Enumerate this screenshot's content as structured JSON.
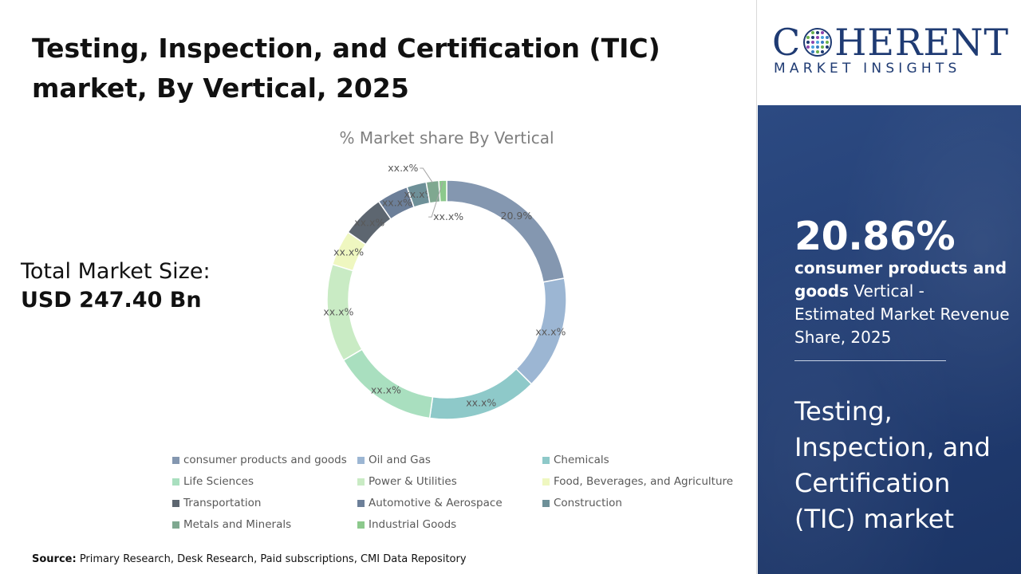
{
  "header": {
    "title": "Testing, Inspection, and Certification (TIC) market, By Vertical, 2025"
  },
  "market_size": {
    "label": "Total Market Size:",
    "value": "USD 247.40 Bn"
  },
  "chart_data": {
    "type": "pie",
    "title": "% Market share By Vertical",
    "donut": true,
    "legend_placement": "bottom",
    "categories": [
      "consumer products and goods",
      "Oil and Gas",
      "Chemicals",
      "Life Sciences",
      "Power & Utilities",
      "Food, Beverages, and Agriculture",
      "Transportation",
      "Automotive & Aerospace",
      "Construction",
      "Metals and Minerals",
      "Industrial Goods"
    ],
    "values": [
      20.9,
      14.5,
      14.0,
      13.5,
      12.5,
      4.5,
      5.5,
      4.0,
      2.5,
      1.6,
      1.0
    ],
    "data_labels": [
      "20.9%",
      "xx.x%",
      "xx.x%",
      "xx.x%",
      "xx.x%",
      "xx.x%",
      "xx.x%",
      "xx.x%",
      "xx.x%",
      "xx.x%",
      "xx.x%"
    ],
    "colors": [
      "#8497b0",
      "#9cb6d3",
      "#8ec9c9",
      "#a9dfbf",
      "#c9ebc4",
      "#eff7c0",
      "#5d6670",
      "#6c7f99",
      "#6e9098",
      "#7fa890",
      "#8cc98c"
    ]
  },
  "side_panel": {
    "stat": "20.86%",
    "desc_bold": "consumer products and goods",
    "desc_rest": " Vertical - Estimated Market Revenue Share, 2025",
    "market_title": "Testing, Inspection, and Certification (TIC) market"
  },
  "logo": {
    "word_before": "C",
    "word_after": "HERENT",
    "subtitle": "MARKET INSIGHTS"
  },
  "footer": {
    "source_label": "Source:",
    "source_text": " Primary Research, Desk Research, Paid subscriptions, CMI Data Repository"
  }
}
